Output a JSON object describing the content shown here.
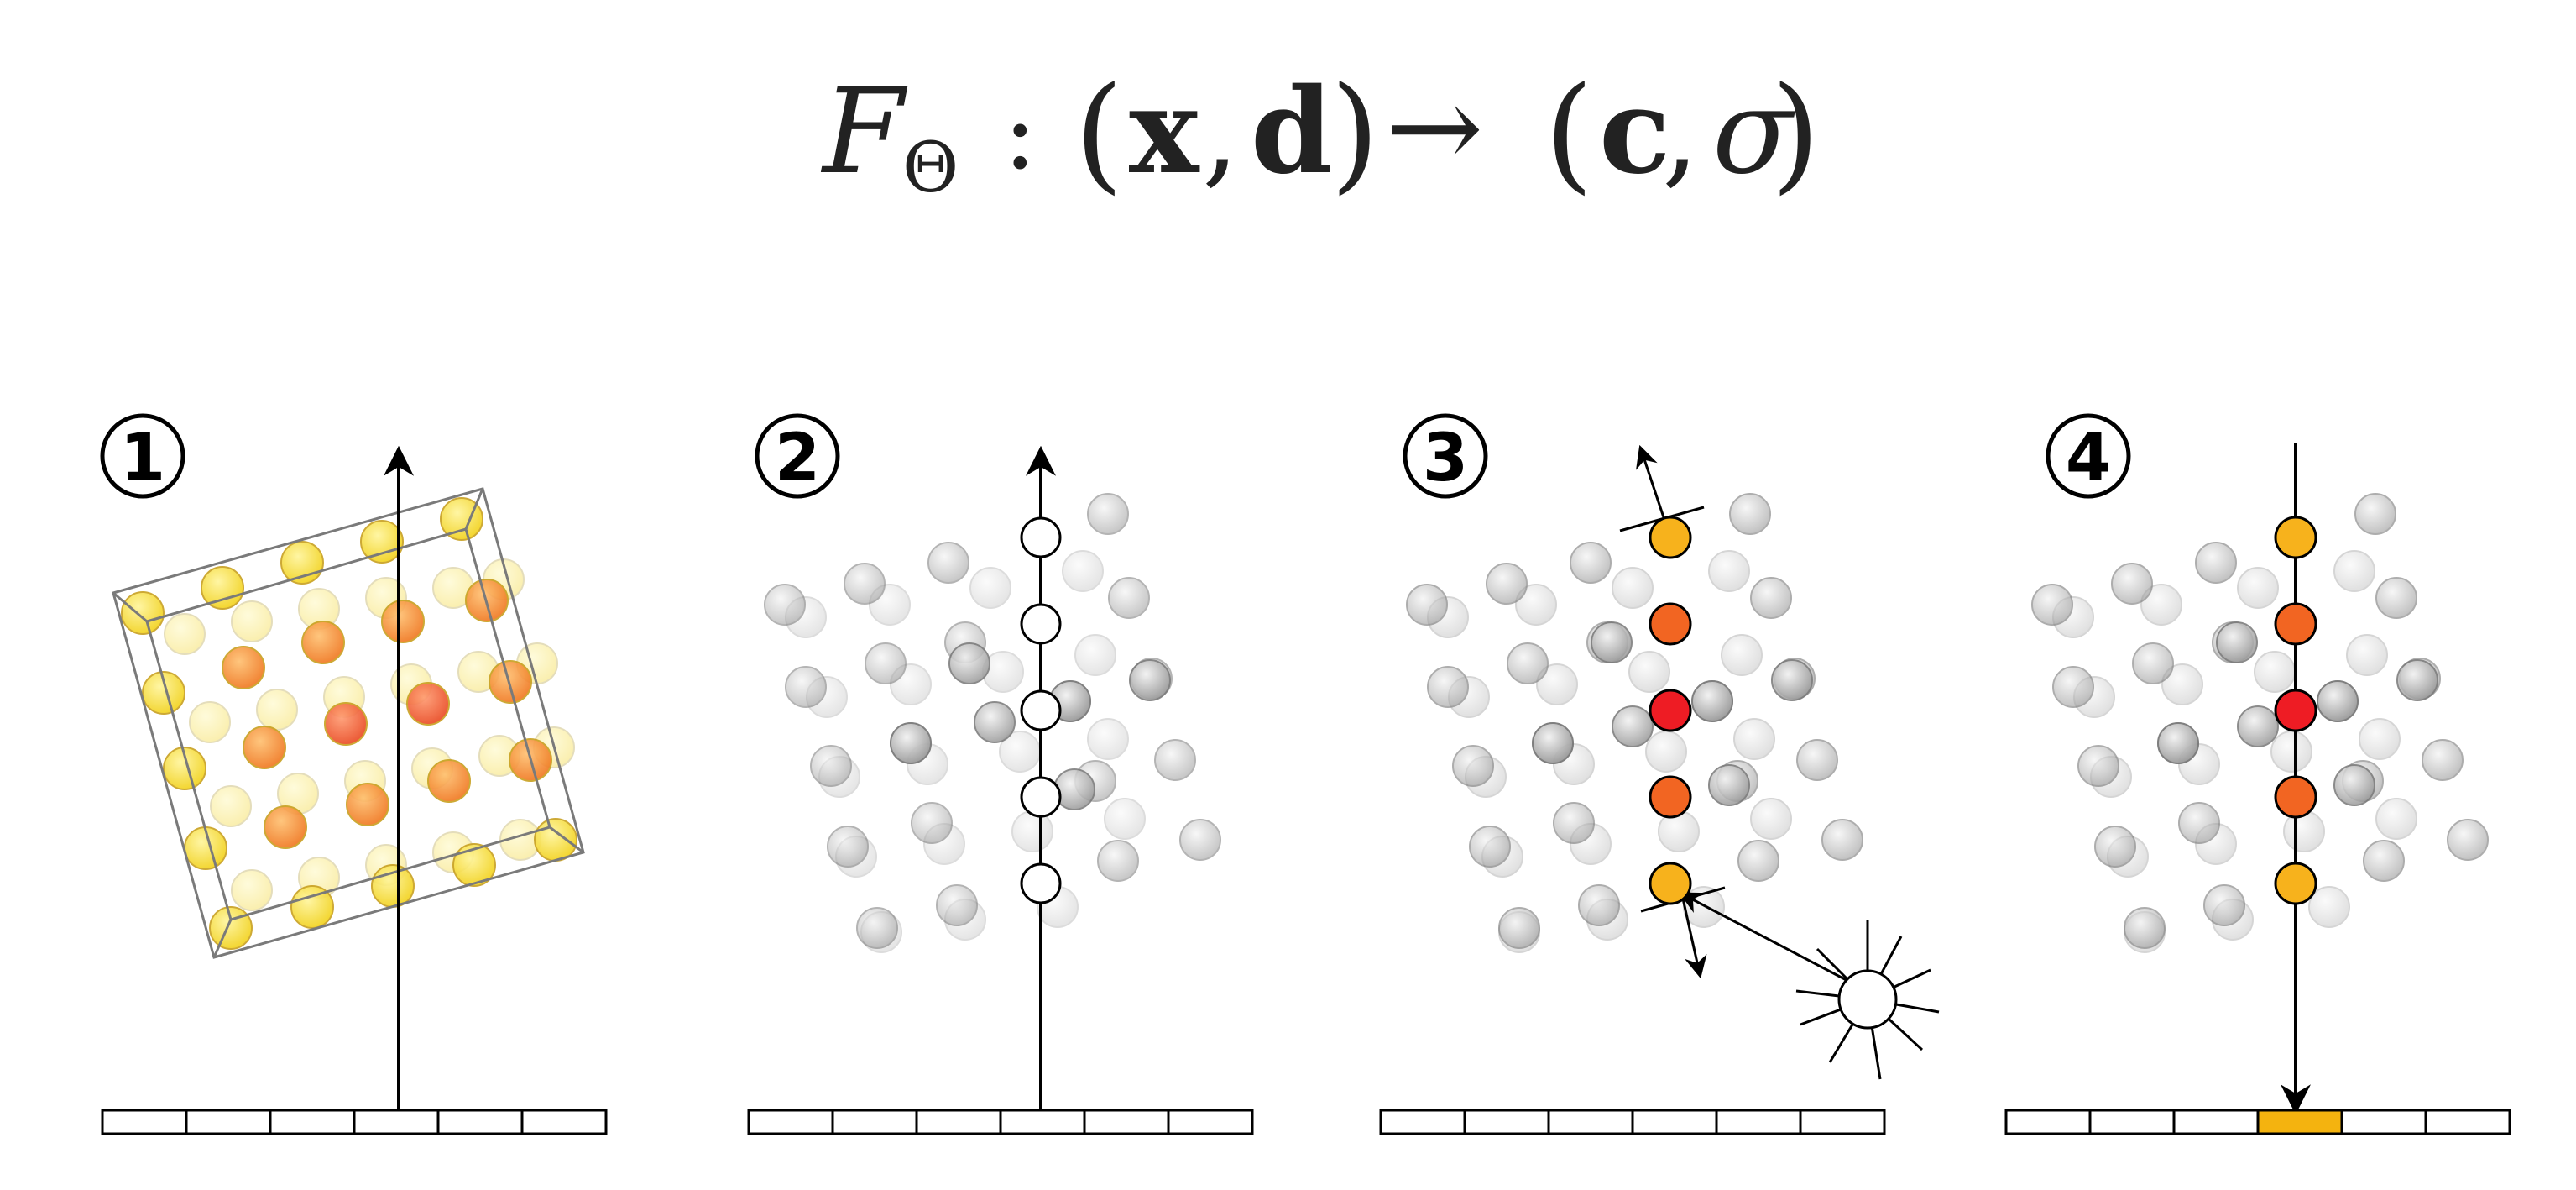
{
  "equation": {
    "F": "F",
    "Theta": "Θ",
    "colon": ":",
    "lhs_open": "(",
    "x": "x",
    "comma1": ",",
    "d": "d",
    "lhs_close": ")",
    "arrow": "→",
    "rhs_open": "(",
    "c": "c",
    "comma2": ",",
    "sigma": "σ",
    "rhs_close": ")"
  },
  "panels": [
    {
      "number": "1",
      "mode": "volume-box"
    },
    {
      "number": "2",
      "mode": "ray-samples"
    },
    {
      "number": "3",
      "mode": "shading"
    },
    {
      "number": "4",
      "mode": "pixel-render"
    }
  ],
  "colors": {
    "yellow": "#f7e23a",
    "light_orange": "#f5b52a",
    "gold": "#f7b21c",
    "orange": "#f26522",
    "red": "#ee1c24",
    "gray_dark": "#8a8a8a",
    "gray_light": "#d0d0d0",
    "pixel_highlight": "#f4b30f",
    "stroke": "#000000",
    "box_stroke": "#7a7a7a"
  },
  "icons": [
    "light-source-icon",
    "arrow-up-icon",
    "arrow-down-icon",
    "normal-arrow-icon"
  ]
}
